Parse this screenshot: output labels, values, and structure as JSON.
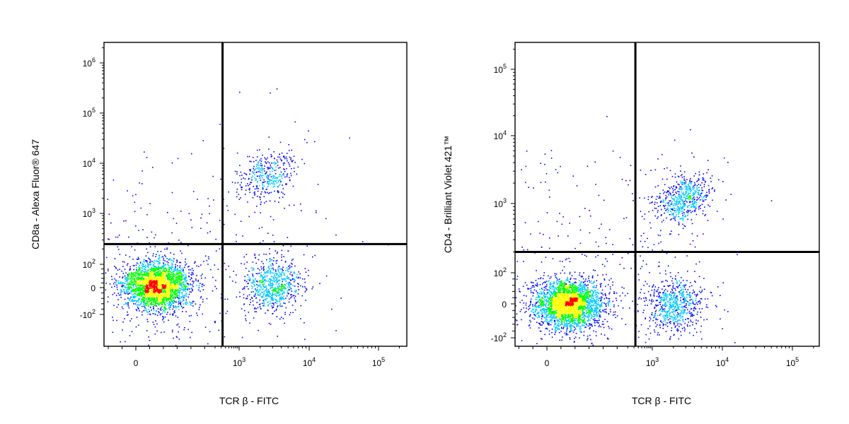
{
  "chart_data": [
    {
      "type": "scatter",
      "subtype": "flow-cytometry-density-dot-plot",
      "xlabel": "TCR β - FITC",
      "ylabel": "CD8a - Alexa Fluor® 647",
      "x_scale": "biexponential",
      "y_scale": "biexponential",
      "x_ticks": [
        {
          "value": 0,
          "base": "0",
          "exp": ""
        },
        {
          "value": 1000,
          "base": "10",
          "exp": "3"
        },
        {
          "value": 10000,
          "base": "10",
          "exp": "4"
        },
        {
          "value": 100000,
          "base": "10",
          "exp": "5"
        }
      ],
      "y_ticks": [
        {
          "value": -100,
          "base": "-10",
          "exp": "2"
        },
        {
          "value": 0,
          "base": "0",
          "exp": ""
        },
        {
          "value": 100,
          "base": "10",
          "exp": "2"
        },
        {
          "value": 1000,
          "base": "10",
          "exp": "3"
        },
        {
          "value": 10000,
          "base": "10",
          "exp": "4"
        },
        {
          "value": 100000,
          "base": "10",
          "exp": "5"
        },
        {
          "value": 1000000,
          "base": "10",
          "exp": "6"
        }
      ],
      "gates": {
        "x": 330,
        "y": 250
      },
      "populations": [
        {
          "name_hint": "double-negative",
          "x_center": 30,
          "y_center": 10,
          "count": 2600
        },
        {
          "name_hint": "TCRb+ CD8a-",
          "x_center": 3000,
          "y_center": 10,
          "count": 700
        },
        {
          "name_hint": "TCRb+ CD8a+",
          "x_center": 2500,
          "y_center": 6000,
          "count": 350
        }
      ]
    },
    {
      "type": "scatter",
      "subtype": "flow-cytometry-density-dot-plot",
      "xlabel": "TCR β - FITC",
      "ylabel": "CD4 - Brilliant Violet 421™",
      "x_scale": "biexponential",
      "y_scale": "biexponential",
      "x_ticks": [
        {
          "value": 0,
          "base": "0",
          "exp": ""
        },
        {
          "value": 1000,
          "base": "10",
          "exp": "3"
        },
        {
          "value": 10000,
          "base": "10",
          "exp": "4"
        },
        {
          "value": 100000,
          "base": "10",
          "exp": "5"
        }
      ],
      "y_ticks": [
        {
          "value": -100,
          "base": "-10",
          "exp": "2"
        },
        {
          "value": 0,
          "base": "0",
          "exp": ""
        },
        {
          "value": 100,
          "base": "10",
          "exp": "2"
        },
        {
          "value": 1000,
          "base": "10",
          "exp": "3"
        },
        {
          "value": 10000,
          "base": "10",
          "exp": "4"
        },
        {
          "value": 100000,
          "base": "10",
          "exp": "5"
        }
      ],
      "gates": {
        "x": 330,
        "y": 200
      },
      "populations": [
        {
          "name_hint": "double-negative",
          "x_center": 30,
          "y_center": 0,
          "count": 2800
        },
        {
          "name_hint": "TCRb+ CD4-",
          "x_center": 2000,
          "y_center": 0,
          "count": 650
        },
        {
          "name_hint": "TCRb+ CD4+",
          "x_center": 2800,
          "y_center": 1200,
          "count": 550
        }
      ]
    }
  ],
  "density_colors": [
    "#0000ff",
    "#00c8ff",
    "#00ff00",
    "#ffff00",
    "#ff0000"
  ]
}
